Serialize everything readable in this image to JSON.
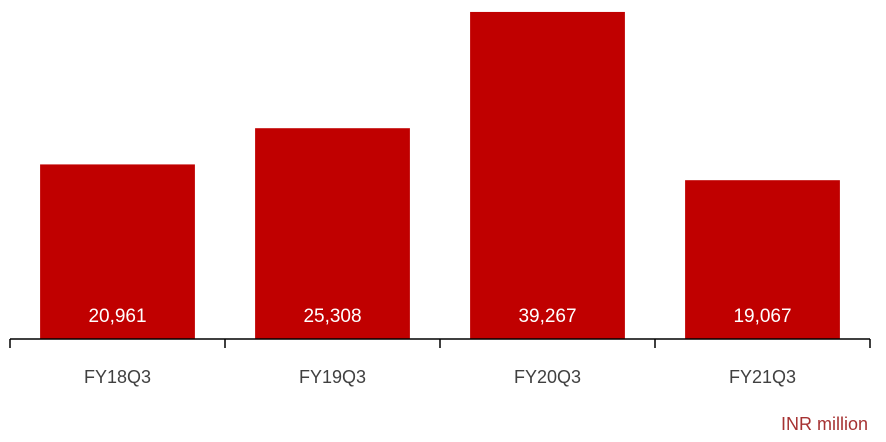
{
  "chart_data": {
    "type": "bar",
    "categories": [
      "FY18Q3",
      "FY19Q3",
      "FY20Q3",
      "FY21Q3"
    ],
    "values": [
      20961,
      25308,
      39267,
      19067
    ],
    "value_labels": [
      "20,961",
      "25,308",
      "39,267",
      "19,067"
    ],
    "unit": "INR million",
    "ylim": [
      0,
      40000
    ],
    "grid": false,
    "bar_color": "#c00000",
    "value_label_color": "#ffffff",
    "axis_color": "#000000"
  }
}
